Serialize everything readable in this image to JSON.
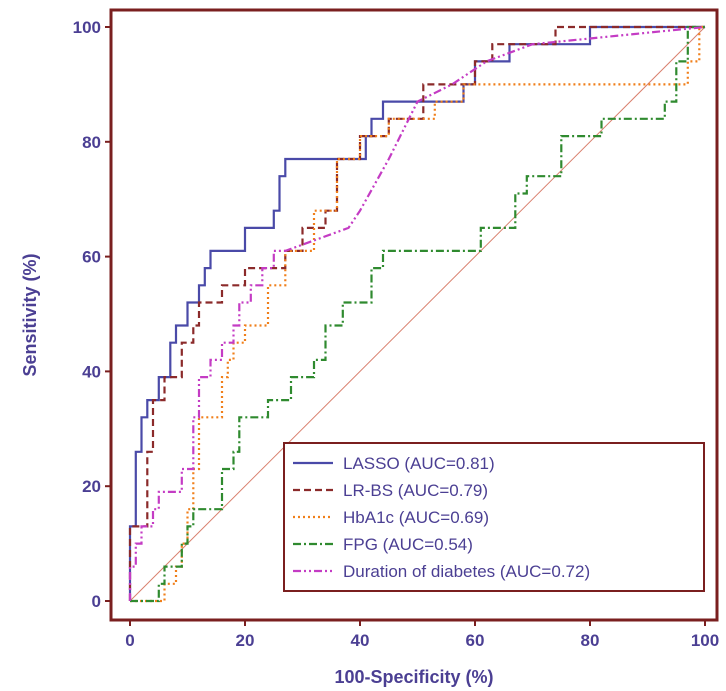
{
  "chart_data": {
    "type": "line",
    "title": "",
    "xlabel": "100-Specificity (%)",
    "ylabel": "Sensitivity (%)",
    "xlim": [
      0,
      100
    ],
    "ylim": [
      0,
      100
    ],
    "x_ticks": [
      "0",
      "20",
      "40",
      "60",
      "80",
      "100"
    ],
    "y_ticks": [
      "0",
      "20",
      "40",
      "60",
      "80",
      "100"
    ],
    "grid": false,
    "legend_position": "bottom-right",
    "colors": {
      "frame": "#7a1f1f",
      "text": "#4b3f93",
      "diagonal": "#d9806e"
    },
    "diagonal": {
      "from": [
        0,
        0
      ],
      "to": [
        100,
        100
      ]
    },
    "series": [
      {
        "name": "LASSO (AUC=0.81)",
        "color": "#4a4aa8",
        "dash": "solid",
        "x": [
          0,
          0,
          1,
          1,
          2,
          2,
          3,
          3,
          5,
          5,
          7,
          7,
          8,
          8,
          10,
          10,
          12,
          12,
          13,
          13,
          14,
          14,
          17,
          17,
          20,
          20,
          23,
          23,
          25,
          25,
          26,
          26,
          27,
          27,
          31,
          31,
          38,
          38,
          41,
          41,
          42,
          42,
          44,
          44,
          49,
          49,
          52,
          52,
          58,
          58,
          60,
          60,
          62,
          62,
          66,
          66,
          72,
          72,
          80,
          80,
          100
        ],
        "y": [
          0,
          13,
          13,
          26,
          26,
          32,
          32,
          35,
          35,
          39,
          39,
          45,
          45,
          48,
          48,
          52,
          52,
          55,
          55,
          58,
          58,
          61,
          61,
          61,
          61,
          65,
          65,
          65,
          65,
          68,
          68,
          74,
          74,
          77,
          77,
          77,
          77,
          77,
          77,
          81,
          81,
          84,
          84,
          87,
          87,
          87,
          87,
          87,
          87,
          90,
          90,
          94,
          94,
          94,
          94,
          97,
          97,
          97,
          97,
          100,
          100
        ]
      },
      {
        "name": "LR-BS (AUC=0.79)",
        "color": "#8b2a2a",
        "dash": "dashed",
        "x": [
          0,
          0,
          1,
          1,
          3,
          3,
          4,
          4,
          6,
          6,
          9,
          9,
          11,
          11,
          12,
          12,
          16,
          16,
          20,
          20,
          24,
          24,
          27,
          27,
          30,
          30,
          34,
          34,
          36,
          36,
          40,
          40,
          45,
          45,
          49,
          49,
          51,
          51,
          60,
          60,
          63,
          63,
          74,
          74,
          100
        ],
        "y": [
          0,
          13,
          13,
          13,
          13,
          26,
          26,
          35,
          35,
          39,
          39,
          45,
          45,
          48,
          48,
          52,
          52,
          55,
          55,
          58,
          58,
          58,
          58,
          61,
          61,
          65,
          65,
          68,
          68,
          77,
          77,
          81,
          81,
          84,
          84,
          84,
          84,
          90,
          90,
          94,
          94,
          97,
          97,
          100,
          100
        ]
      },
      {
        "name": "HbA1c (AUC=0.69)",
        "color": "#f07f1a",
        "dash": "dotted",
        "x": [
          0,
          6,
          6,
          8,
          8,
          9,
          9,
          10,
          10,
          11,
          11,
          12,
          12,
          14,
          14,
          16,
          16,
          17,
          17,
          18,
          18,
          19,
          19,
          20,
          20,
          21,
          21,
          24,
          24,
          27,
          27,
          32,
          32,
          36,
          36,
          38,
          38,
          40,
          40,
          45,
          45,
          53,
          53,
          58,
          58,
          92,
          92,
          97,
          97,
          99,
          99,
          100
        ],
        "y": [
          0,
          0,
          3,
          3,
          6,
          6,
          10,
          10,
          16,
          16,
          23,
          23,
          32,
          32,
          32,
          32,
          39,
          39,
          42,
          42,
          45,
          45,
          45,
          45,
          48,
          48,
          48,
          48,
          55,
          55,
          61,
          61,
          68,
          68,
          77,
          77,
          77,
          77,
          81,
          81,
          84,
          84,
          87,
          87,
          90,
          90,
          90,
          90,
          94,
          94,
          100,
          100
        ]
      },
      {
        "name": "FPG (AUC=0.54)",
        "color": "#2f8a2f",
        "dash": "dashdot",
        "x": [
          0,
          5,
          5,
          6,
          6,
          8,
          8,
          9,
          9,
          10,
          10,
          11,
          11,
          14,
          14,
          16,
          16,
          18,
          18,
          19,
          19,
          21,
          21,
          24,
          24,
          25,
          25,
          28,
          28,
          32,
          32,
          34,
          34,
          36,
          36,
          37,
          37,
          42,
          42,
          44,
          44,
          50,
          50,
          56,
          56,
          61,
          61,
          64,
          64,
          67,
          67,
          69,
          69,
          72,
          72,
          75,
          75,
          76,
          76,
          82,
          82,
          87,
          87,
          93,
          93,
          95,
          95,
          97,
          97,
          100
        ],
        "y": [
          0,
          0,
          3,
          3,
          6,
          6,
          6,
          6,
          10,
          10,
          13,
          13,
          16,
          16,
          16,
          16,
          23,
          23,
          26,
          26,
          32,
          32,
          32,
          32,
          35,
          35,
          35,
          35,
          39,
          39,
          42,
          42,
          48,
          48,
          48,
          48,
          52,
          52,
          58,
          58,
          61,
          61,
          61,
          61,
          61,
          61,
          65,
          65,
          65,
          65,
          71,
          71,
          74,
          74,
          74,
          74,
          81,
          81,
          81,
          81,
          84,
          84,
          84,
          84,
          87,
          87,
          94,
          94,
          100,
          100
        ]
      },
      {
        "name": "Duration of diabetes (AUC=0.72)",
        "color": "#c43cc4",
        "dash": "dashdotdot",
        "x": [
          0,
          0,
          1,
          1,
          2,
          2,
          4,
          4,
          5,
          5,
          8,
          8,
          9,
          9,
          11,
          11,
          12,
          12,
          14,
          14,
          16,
          16,
          18,
          18,
          19,
          19,
          21,
          21,
          23,
          23,
          25,
          25,
          27,
          27,
          38,
          40,
          45,
          50,
          56,
          62,
          70,
          80,
          90,
          100
        ],
        "y": [
          0,
          6,
          6,
          10,
          10,
          13,
          13,
          16,
          16,
          19,
          19,
          19,
          19,
          23,
          23,
          32,
          32,
          39,
          39,
          42,
          42,
          45,
          45,
          48,
          48,
          52,
          52,
          55,
          55,
          58,
          58,
          61,
          61,
          61,
          65,
          68,
          77,
          87,
          90,
          94,
          97,
          98,
          99,
          100
        ]
      }
    ]
  }
}
